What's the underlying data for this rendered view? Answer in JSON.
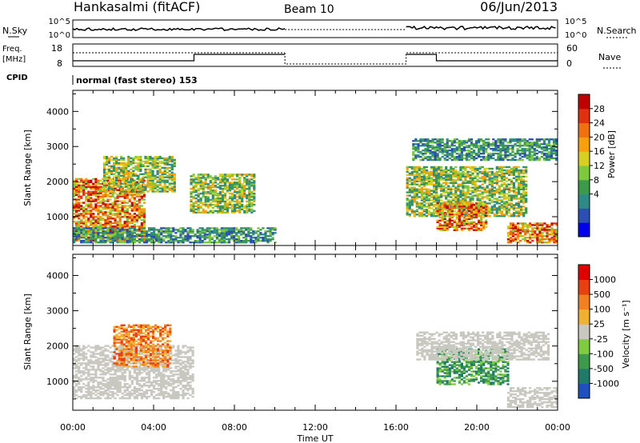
{
  "header": {
    "radar": "Hankasalmi (fitACF)",
    "beam": "Beam 10",
    "date": "06/Jun/2013"
  },
  "noise_panel": {
    "left_label": "N.Sky",
    "right_label": "N.Search",
    "left_ticks": [
      "10^5",
      "10^0"
    ],
    "right_ticks": [
      "10^5",
      "10^0"
    ]
  },
  "freq_panel": {
    "left_label_1": "Freq.",
    "left_label_2": "[MHz]",
    "left_ticks": [
      "18",
      "8"
    ],
    "right_label": "Nave",
    "right_ticks": [
      "60",
      "0"
    ]
  },
  "cpid": {
    "label": "CPID",
    "value": "normal (fast stereo) 153"
  },
  "time_axis": {
    "labels": [
      "00:00",
      "04:00",
      "08:00",
      "12:00",
      "16:00",
      "20:00",
      "00:00"
    ],
    "title": "Time UT"
  },
  "chart_data": [
    {
      "type": "heatmap",
      "name": "power",
      "ylabel": "Slant Range [km]",
      "yticks": [
        "4000",
        "3000",
        "2000",
        "1000"
      ],
      "ylim": [
        180,
        4600
      ],
      "xlim_hours": [
        0,
        24
      ],
      "colorbar": {
        "title": "Power [dB]",
        "range": [
          0,
          32
        ],
        "ticks": [
          "28",
          "24",
          "20",
          "16",
          "12",
          "8",
          "4"
        ],
        "colors": [
          "#0000ee",
          "#2c4fb4",
          "#2e8a86",
          "#3c9a4a",
          "#7dc83c",
          "#d8d020",
          "#f5a00c",
          "#f07010",
          "#e03010",
          "#c00000"
        ]
      },
      "echo_regions": [
        {
          "t": [
            0.0,
            3.5
          ],
          "r": [
            300,
            2100
          ],
          "level": "high"
        },
        {
          "t": [
            1.5,
            5.0
          ],
          "r": [
            1700,
            2700
          ],
          "level": "mid"
        },
        {
          "t": [
            5.8,
            9.0
          ],
          "r": [
            1100,
            2200
          ],
          "level": "mid"
        },
        {
          "t": [
            0.0,
            10.0
          ],
          "r": [
            250,
            700
          ],
          "level": "low"
        },
        {
          "t": [
            16.5,
            22.5
          ],
          "r": [
            1000,
            2400
          ],
          "level": "mid"
        },
        {
          "t": [
            18.0,
            20.5
          ],
          "r": [
            600,
            1400
          ],
          "level": "high"
        },
        {
          "t": [
            21.5,
            24.0
          ],
          "r": [
            250,
            800
          ],
          "level": "high"
        },
        {
          "t": [
            16.8,
            24.0
          ],
          "r": [
            2600,
            3200
          ],
          "level": "low"
        }
      ]
    },
    {
      "type": "heatmap",
      "name": "velocity",
      "ylabel": "Slant Range [km]",
      "yticks": [
        "4000",
        "3000",
        "2000",
        "1000"
      ],
      "ylim": [
        180,
        4600
      ],
      "xlim_hours": [
        0,
        24
      ],
      "colorbar": {
        "title": "Velocity [m s⁻¹]",
        "ticks": [
          "1000",
          "500",
          "100",
          "25",
          "-25",
          "-100",
          "-500",
          "-1000"
        ],
        "colors": [
          "#2050c0",
          "#1f7a6a",
          "#3c9a4a",
          "#80cc40",
          "#c8c8c0",
          "#f0b030",
          "#f08020",
          "#e84010",
          "#e00000"
        ]
      },
      "echo_regions": [
        {
          "t": [
            0.0,
            6.0
          ],
          "r": [
            500,
            2000
          ],
          "v": "near zero"
        },
        {
          "t": [
            2.0,
            4.8
          ],
          "r": [
            1400,
            2600
          ],
          "v": "away"
        },
        {
          "t": [
            18.0,
            21.5
          ],
          "r": [
            900,
            1900
          ],
          "v": "toward"
        },
        {
          "t": [
            17.0,
            23.5
          ],
          "r": [
            1600,
            2400
          ],
          "v": "near zero"
        },
        {
          "t": [
            21.5,
            24.0
          ],
          "r": [
            250,
            800
          ],
          "v": "near zero"
        }
      ]
    }
  ]
}
